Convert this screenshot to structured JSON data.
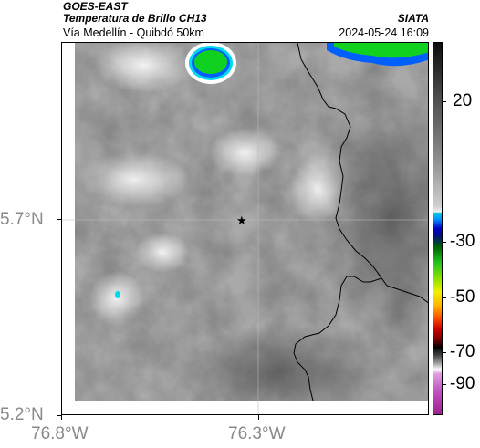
{
  "header": {
    "satellite": "GOES-EAST",
    "product": "Temperatura de Brillo CH13",
    "organization": "SIATA",
    "region": "Vía Medellín - Quibdó 50km",
    "datetime": "2024-05-24 16:09"
  },
  "axes": {
    "y_ticks": [
      "5.7°N",
      "5.2°N"
    ],
    "x_ticks": [
      "76.8°W",
      "76.3°W"
    ]
  },
  "colorbar": {
    "ticks": [
      "20",
      "-30",
      "-50",
      "-70",
      "-90"
    ]
  },
  "colors": {
    "cloud_green": "#10d020",
    "cloud_blue": "#0060ff",
    "cloud_cyan": "#00d8f0",
    "border_line": "#000000"
  },
  "marker": {
    "icon": "star-icon"
  }
}
